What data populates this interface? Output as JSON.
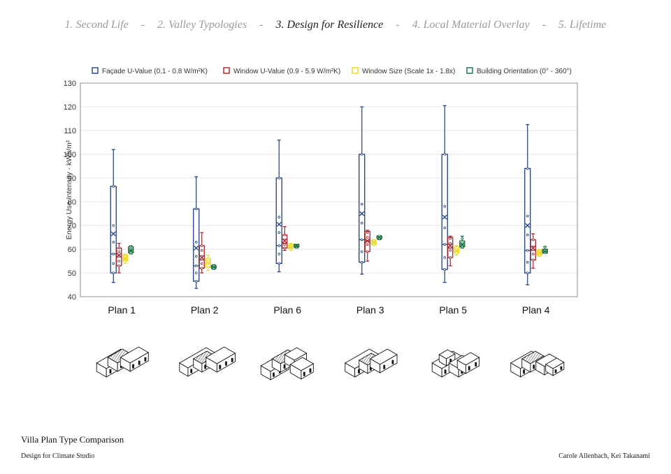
{
  "nav": {
    "steps": [
      {
        "label": "1. Second Life",
        "active": false
      },
      {
        "label": "2. Valley Typologies",
        "active": false
      },
      {
        "label": "3. Design for Resilience",
        "active": true
      },
      {
        "label": "4. Local Material Overlay",
        "active": false
      },
      {
        "label": "5. Lifetime",
        "active": false
      }
    ],
    "separator": "-"
  },
  "chart_data": {
    "type": "boxplot",
    "title": "",
    "ylabel": "Energy Use Intensity - kWh/m²",
    "xlabel": "",
    "ylim": [
      40,
      130
    ],
    "yticks": [
      40,
      50,
      60,
      70,
      80,
      90,
      100,
      110,
      120,
      130
    ],
    "grid": true,
    "legend_position": "top",
    "categories": [
      "Plan 1",
      "Plan 2",
      "Plan 6",
      "Plan 3",
      "Plan 5",
      "Plan 4"
    ],
    "series": [
      {
        "name": "Façade U-Value (0.1 - 0.8 W/m²K)",
        "color": "#1f3e7a",
        "boxes": [
          {
            "min": 46,
            "q1": 50,
            "median": 58,
            "q3": 86.5,
            "max": 102,
            "mean": 66.5,
            "points": [
              50,
              54,
              58,
              63,
              70,
              86.5
            ]
          },
          {
            "min": 43.5,
            "q1": 46.5,
            "median": 53,
            "q3": 77,
            "max": 90.5,
            "mean": 60.5,
            "points": [
              46.5,
              50,
              53,
              57,
              63,
              77
            ]
          },
          {
            "min": 50.5,
            "q1": 54,
            "median": 61.5,
            "q3": 90,
            "max": 106,
            "mean": 70.5,
            "points": [
              54,
              58,
              61.5,
              67,
              73.5,
              90
            ]
          },
          {
            "min": 49.5,
            "q1": 54.5,
            "median": 64,
            "q3": 100,
            "max": 120,
            "mean": 75,
            "points": [
              54.5,
              59,
              64,
              71,
              79,
              100
            ]
          },
          {
            "min": 46,
            "q1": 51.5,
            "median": 62,
            "q3": 100,
            "max": 120.5,
            "mean": 73.5,
            "points": [
              51.5,
              56.5,
              62,
              69,
              78,
              100
            ]
          },
          {
            "min": 45,
            "q1": 50,
            "median": 59.5,
            "q3": 94,
            "max": 112.5,
            "mean": 70,
            "points": [
              50,
              54.5,
              59.5,
              66,
              74,
              94
            ]
          }
        ]
      },
      {
        "name": "Window U-Value (0.9 - 5.9 W/m²K)",
        "color": "#a3232b",
        "boxes": [
          {
            "min": 50,
            "q1": 53,
            "median": 57,
            "q3": 60.5,
            "max": 62.5,
            "mean": 57.5,
            "points": [
              53,
              55,
              57,
              59,
              60.5
            ]
          },
          {
            "min": 50,
            "q1": 52,
            "median": 55.5,
            "q3": 61.5,
            "max": 67,
            "mean": 56.5,
            "points": [
              52,
              54,
              57,
              59.5,
              61.5
            ]
          },
          {
            "min": 59.5,
            "q1": 60.5,
            "median": 62.5,
            "q3": 66,
            "max": 69.5,
            "mean": 63.5,
            "points": [
              60.5,
              62,
              64,
              66
            ]
          },
          {
            "min": 55,
            "q1": 59,
            "median": 63.5,
            "q3": 67.5,
            "max": 68,
            "mean": 63.5,
            "points": [
              59,
              62,
              65,
              67
            ]
          },
          {
            "min": 53,
            "q1": 56.5,
            "median": 60.5,
            "q3": 65,
            "max": 65.5,
            "mean": 61.5,
            "points": [
              56.5,
              59.5,
              62.5,
              64.5
            ]
          },
          {
            "min": 52,
            "q1": 55.5,
            "median": 59.5,
            "q3": 64,
            "max": 66.5,
            "mean": 60.5,
            "points": [
              55.5,
              58,
              61,
              64
            ]
          }
        ]
      },
      {
        "name": "Window Size (Scale 1x - 1.8x)",
        "color": "#e8d81e",
        "boxes": [
          {
            "min": 54,
            "q1": 55,
            "median": 56,
            "q3": 57.5,
            "max": 58,
            "mean": 56,
            "points": [
              55,
              56,
              57
            ]
          },
          {
            "min": 51,
            "q1": 52.5,
            "median": 54,
            "q3": 56,
            "max": 57.5,
            "mean": 54.5,
            "points": [
              52.5,
              54,
              56
            ]
          },
          {
            "min": 59.5,
            "q1": 60.5,
            "median": 61,
            "q3": 62,
            "max": 62.5,
            "mean": 61,
            "points": [
              60.5,
              61.5
            ]
          },
          {
            "min": 61.5,
            "q1": 62,
            "median": 63,
            "q3": 63.5,
            "max": 64,
            "mean": 63,
            "points": [
              62,
              63.5
            ]
          },
          {
            "min": 57.5,
            "q1": 58.5,
            "median": 59.5,
            "q3": 61,
            "max": 61.5,
            "mean": 59.5,
            "points": [
              58.5,
              60
            ]
          },
          {
            "min": 57,
            "q1": 57.5,
            "median": 58.5,
            "q3": 59.5,
            "max": 60,
            "mean": 58.5,
            "points": [
              57.5,
              59
            ]
          }
        ]
      },
      {
        "name": "Building Orientation (0° - 360°)",
        "color": "#1b6b3f",
        "boxes": [
          {
            "min": 58,
            "q1": 58.5,
            "median": 59.5,
            "q3": 61,
            "max": 61.5,
            "mean": 59.5,
            "points": [
              58.5,
              60,
              61
            ]
          },
          {
            "min": 51.5,
            "q1": 52,
            "median": 52.5,
            "q3": 53,
            "max": 53.5,
            "mean": 52.5,
            "points": [
              52,
              53
            ]
          },
          {
            "min": 60.5,
            "q1": 61,
            "median": 61.5,
            "q3": 62,
            "max": 62,
            "mean": 61.5,
            "points": [
              61,
              61.5
            ]
          },
          {
            "min": 64,
            "q1": 64.5,
            "median": 65,
            "q3": 65.5,
            "max": 65.5,
            "mean": 65,
            "points": [
              64.5,
              65.5
            ]
          },
          {
            "min": 60.5,
            "q1": 61,
            "median": 62,
            "q3": 63.5,
            "max": 65.5,
            "mean": 62,
            "points": [
              61,
              62.5,
              64.5
            ]
          },
          {
            "min": 58.5,
            "q1": 58.5,
            "median": 59,
            "q3": 60,
            "max": 61,
            "mean": 59,
            "points": [
              58.5,
              59.5,
              61
            ]
          }
        ]
      }
    ]
  },
  "plans": [
    {
      "name": "Plan 1 floor plan drawing",
      "variant": 1
    },
    {
      "name": "Plan 2 floor plan drawing",
      "variant": 2
    },
    {
      "name": "Plan 6 floor plan drawing",
      "variant": 6
    },
    {
      "name": "Plan 3 floor plan drawing",
      "variant": 3
    },
    {
      "name": "Plan 5 floor plan drawing",
      "variant": 5
    },
    {
      "name": "Plan 4 floor plan drawing",
      "variant": 4
    }
  ],
  "footer": {
    "title": "Villa Plan Type Comparison",
    "subtitle": "Design for Climate Studio",
    "authors": "Carole Allenbach, Kei Takanami"
  }
}
